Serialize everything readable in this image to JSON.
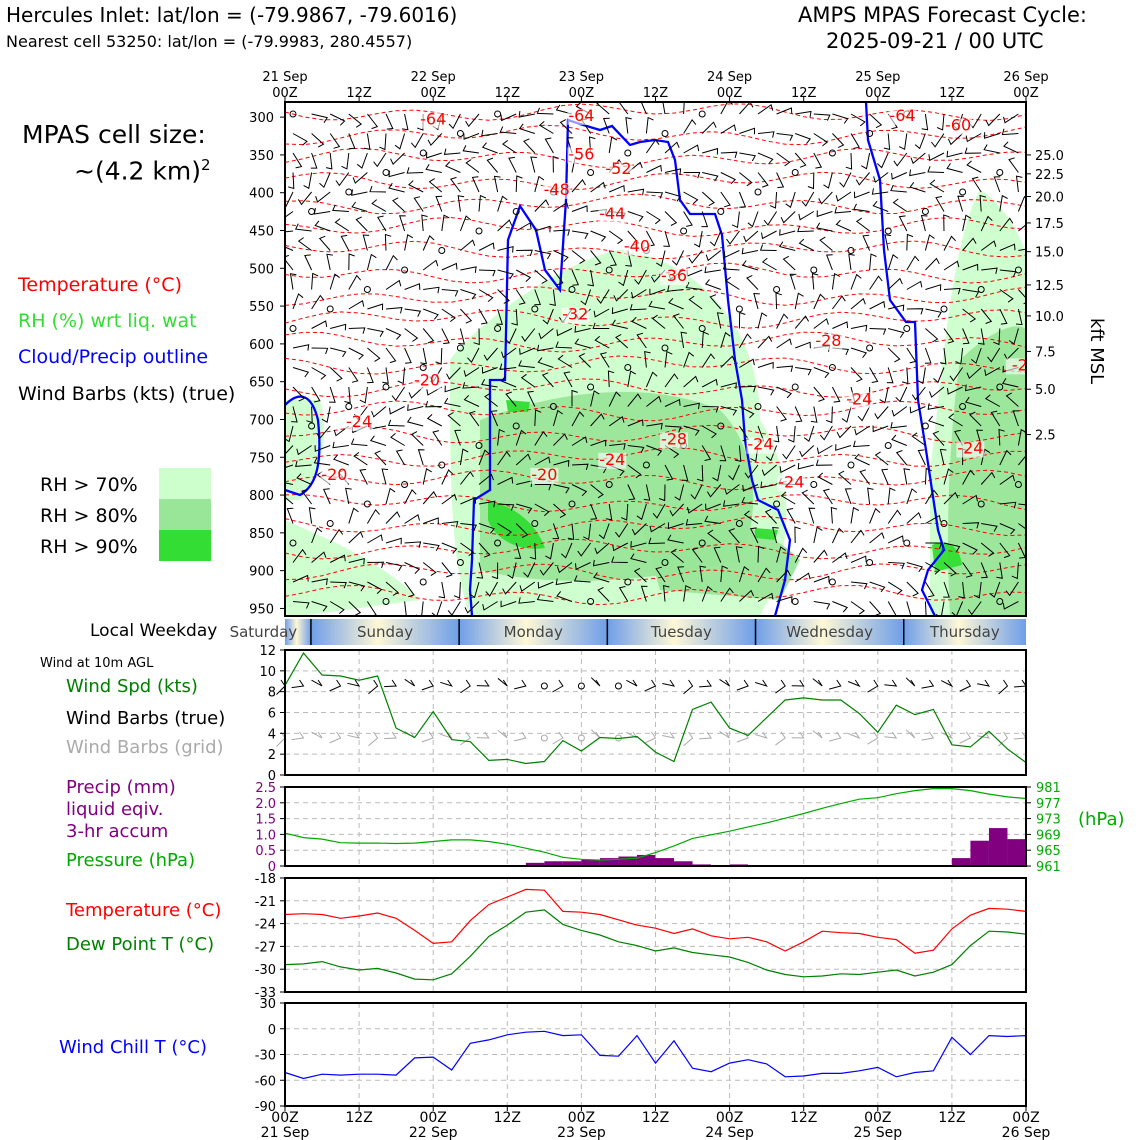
{
  "header": {
    "location_line": "Hercules Inlet: lat/lon = (-79.9867, -79.6016)",
    "cell_line": "Nearest cell 53250: lat/lon = (-79.9983, 280.4557)",
    "cycle_title": "AMPS MPAS Forecast Cycle:",
    "cycle_date": "2025-09-21 / 00 UTC"
  },
  "legend": {
    "cell_size_label": "MPAS cell size:",
    "cell_size_value": "~(4.2 km)",
    "cell_size_exp": "2",
    "temperature": "Temperature (°C)",
    "rh": "RH (%) wrt liq. wat",
    "cloud": "Cloud/Precip outline",
    "wind_barbs": "Wind Barbs (kts) (true)",
    "rh70": "RH > 70%",
    "rh80": "RH > 80%",
    "rh90": "RH > 90%"
  },
  "colors": {
    "temperature": "#ff0000",
    "rh_text": "#33dd33",
    "cloud": "#0000ff",
    "rh70": "#ccffcc",
    "rh80": "#99e699",
    "rh90": "#33dd33",
    "wind_speed": "#008000",
    "precip": "#800080",
    "pressure": "#00aa00",
    "dewpoint": "#008000",
    "windchill": "#0000ff",
    "grid_barb": "#aaaaaa"
  },
  "weekday": {
    "label": "Local Weekday",
    "days": [
      "Saturday",
      "Sunday",
      "Monday",
      "Tuesday",
      "Wednesday",
      "Thursday"
    ]
  },
  "time_axis": {
    "top_date_labels": [
      "21 Sep",
      "22 Sep",
      "23 Sep",
      "24 Sep",
      "25 Sep",
      "26 Sep"
    ],
    "tick_labels": [
      "00Z",
      "12Z",
      "00Z",
      "12Z",
      "00Z",
      "12Z",
      "00Z",
      "12Z",
      "00Z",
      "12Z",
      "00Z"
    ],
    "bottom_date_labels": [
      "21 Sep",
      "22 Sep",
      "23 Sep",
      "24 Sep",
      "25 Sep",
      "26 Sep"
    ]
  },
  "chart_data": [
    {
      "id": "upper-air",
      "type": "heatmap",
      "pressure_ticks": [
        300,
        350,
        400,
        450,
        500,
        550,
        600,
        650,
        700,
        750,
        800,
        850,
        900,
        950
      ],
      "right_axis_label": "kft MSL",
      "kft_ticks": [
        "25.0",
        "22.5",
        "20.0",
        "17.5",
        "15.0",
        "12.5",
        "10.0",
        "7.5",
        "5.0",
        "2.5"
      ],
      "kft_tick_pressures": [
        350,
        375,
        405,
        440,
        478,
        522,
        563,
        610,
        660,
        720
      ],
      "temperature_labels": [
        {
          "text": "-64",
          "hour": 24,
          "p": 310
        },
        {
          "text": "-64",
          "hour": 48,
          "p": 305
        },
        {
          "text": "-64",
          "hour": 100,
          "p": 305
        },
        {
          "text": "-60",
          "hour": 109,
          "p": 318
        },
        {
          "text": "-56",
          "hour": 48,
          "p": 356
        },
        {
          "text": "-52",
          "hour": 54,
          "p": 375
        },
        {
          "text": "-48",
          "hour": 44,
          "p": 403
        },
        {
          "text": "-44",
          "hour": 53,
          "p": 435
        },
        {
          "text": "-40",
          "hour": 57,
          "p": 478
        },
        {
          "text": "-36",
          "hour": 63,
          "p": 517
        },
        {
          "text": "-32",
          "hour": 47,
          "p": 568
        },
        {
          "text": "-28",
          "hour": 88,
          "p": 603
        },
        {
          "text": "-24",
          "hour": 93,
          "p": 680
        },
        {
          "text": "-24",
          "hour": 12,
          "p": 710
        },
        {
          "text": "-20",
          "hour": 23,
          "p": 655
        },
        {
          "text": "-28",
          "hour": 63,
          "p": 733
        },
        {
          "text": "-24",
          "hour": 77,
          "p": 740
        },
        {
          "text": "-24",
          "hour": 53,
          "p": 760
        },
        {
          "text": "-20",
          "hour": 42,
          "p": 780
        },
        {
          "text": "-20",
          "hour": 8,
          "p": 780
        },
        {
          "text": "-24",
          "hour": 82,
          "p": 790
        },
        {
          "text": "-24",
          "hour": 111,
          "p": 745
        },
        {
          "text": "-2",
          "hour": 119,
          "p": 635
        }
      ],
      "x_range_hours": [
        0,
        120
      ],
      "y_range_hpa": [
        280,
        960
      ]
    },
    {
      "id": "wind-10m",
      "type": "line",
      "title_note": "Wind at 10m AGL",
      "ylabel": "Wind Spd (kts)",
      "ylim": [
        0,
        12
      ],
      "yticks": [
        0,
        2,
        4,
        6,
        8,
        10,
        12
      ],
      "x_hours": [
        0,
        3,
        6,
        9,
        12,
        15,
        18,
        21,
        24,
        27,
        30,
        33,
        36,
        39,
        42,
        45,
        48,
        51,
        54,
        57,
        60,
        63,
        66,
        69,
        72,
        75,
        78,
        81,
        84,
        87,
        90,
        93,
        96,
        99,
        102,
        105,
        108,
        111,
        114,
        117,
        120
      ],
      "series": [
        {
          "name": "Wind Spd (kts)",
          "values": [
            8.6,
            11.7,
            9.6,
            9.5,
            9.1,
            9.5,
            4.5,
            3.6,
            6.1,
            3.4,
            3.2,
            1.4,
            1.5,
            1.1,
            1.3,
            3.3,
            2.3,
            3.6,
            3.5,
            3.7,
            2.2,
            1.3,
            6.3,
            7.0,
            4.5,
            3.8,
            5.5,
            7.2,
            7.4,
            7.2,
            7.2,
            5.9,
            4.1,
            6.7,
            5.8,
            6.3,
            2.9,
            2.7,
            4.2,
            2.5,
            1.2
          ]
        }
      ],
      "legend": [
        "Wind Spd (kts)",
        "Wind Barbs (true)",
        "Wind Barbs (grid)"
      ]
    },
    {
      "id": "precip-pressure",
      "type": "bar",
      "ylabel_left": [
        "Precip (mm)",
        "liquid eqiv.",
        "3-hr accum"
      ],
      "ylabel_right_series": "Pressure (hPa)",
      "right_unit": "(hPa)",
      "ylim": [
        0,
        2.5
      ],
      "yticks": [
        0,
        0.5,
        1.0,
        1.5,
        2.0,
        2.5
      ],
      "ylim_right": [
        961,
        981
      ],
      "yticks_right": [
        961,
        965,
        969,
        973,
        977,
        981
      ],
      "precip_bars": [
        {
          "start_hour": 39,
          "value": 0.1
        },
        {
          "start_hour": 42,
          "value": 0.15
        },
        {
          "start_hour": 45,
          "value": 0.15
        },
        {
          "start_hour": 48,
          "value": 0.2
        },
        {
          "start_hour": 51,
          "value": 0.25
        },
        {
          "start_hour": 54,
          "value": 0.3
        },
        {
          "start_hour": 57,
          "value": 0.35
        },
        {
          "start_hour": 60,
          "value": 0.25
        },
        {
          "start_hour": 63,
          "value": 0.15
        },
        {
          "start_hour": 66,
          "value": 0.05
        },
        {
          "start_hour": 72,
          "value": 0.05
        },
        {
          "start_hour": 108,
          "value": 0.25
        },
        {
          "start_hour": 111,
          "value": 0.8
        },
        {
          "start_hour": 114,
          "value": 1.2
        },
        {
          "start_hour": 117,
          "value": 0.85
        }
      ],
      "pressure_x_hours": [
        0,
        3,
        6,
        9,
        12,
        15,
        18,
        21,
        24,
        27,
        30,
        33,
        36,
        39,
        42,
        45,
        48,
        51,
        54,
        57,
        60,
        63,
        66,
        69,
        72,
        75,
        78,
        81,
        84,
        87,
        90,
        93,
        96,
        99,
        102,
        105,
        108,
        111,
        114,
        117,
        120
      ],
      "pressure_values": [
        969.3,
        968.2,
        967.8,
        966.9,
        966.8,
        966.8,
        966.7,
        966.8,
        967.2,
        967.6,
        967.6,
        967.2,
        966.5,
        965.5,
        964.5,
        963.2,
        962.7,
        962.5,
        962.7,
        963.0,
        964.4,
        966.1,
        968.0,
        968.9,
        969.8,
        970.9,
        971.9,
        973.1,
        974.3,
        975.6,
        976.8,
        977.9,
        978.3,
        979.3,
        980.1,
        980.6,
        980.6,
        980.1,
        979.2,
        978.5,
        978.1
      ]
    },
    {
      "id": "temp-dewpoint",
      "type": "line",
      "ylim": [
        -33,
        -18
      ],
      "yticks": [
        -18,
        -21,
        -24,
        -27,
        -30,
        -33
      ],
      "x_hours": [
        0,
        3,
        6,
        9,
        12,
        15,
        18,
        21,
        24,
        27,
        30,
        33,
        36,
        39,
        42,
        45,
        48,
        51,
        54,
        57,
        60,
        63,
        66,
        69,
        72,
        75,
        78,
        81,
        84,
        87,
        90,
        93,
        96,
        99,
        102,
        105,
        108,
        111,
        114,
        117,
        120
      ],
      "series": [
        {
          "name": "Temperature (°C)",
          "values": [
            -22.8,
            -22.7,
            -22.8,
            -23.3,
            -23.0,
            -22.6,
            -23.3,
            -24.9,
            -26.6,
            -26.4,
            -23.6,
            -21.5,
            -20.5,
            -19.5,
            -19.6,
            -22.4,
            -22.5,
            -22.8,
            -23.5,
            -24.2,
            -24.6,
            -25.3,
            -24.7,
            -25.6,
            -26.0,
            -25.8,
            -26.4,
            -27.6,
            -26.4,
            -25.0,
            -25.2,
            -25.3,
            -25.8,
            -26.1,
            -27.9,
            -27.5,
            -24.7,
            -22.9,
            -22.0,
            -22.1,
            -22.4
          ]
        },
        {
          "name": "Dew Point T (°C)",
          "values": [
            -29.4,
            -29.3,
            -29.0,
            -29.7,
            -30.1,
            -29.9,
            -30.5,
            -31.3,
            -31.4,
            -30.6,
            -28.3,
            -25.7,
            -24.2,
            -22.5,
            -22.2,
            -24.1,
            -24.9,
            -25.5,
            -26.4,
            -26.9,
            -27.6,
            -27.2,
            -27.8,
            -28.1,
            -28.4,
            -29.1,
            -30.1,
            -30.7,
            -31.0,
            -30.9,
            -30.6,
            -30.7,
            -30.4,
            -30.1,
            -30.9,
            -30.4,
            -29.4,
            -26.9,
            -25.0,
            -25.1,
            -25.4
          ]
        }
      ]
    },
    {
      "id": "wind-chill",
      "type": "line",
      "ylim": [
        -90,
        30
      ],
      "yticks": [
        30,
        0,
        -30,
        -60,
        -90
      ],
      "x_hours": [
        0,
        3,
        6,
        9,
        12,
        15,
        18,
        21,
        24,
        27,
        30,
        33,
        36,
        39,
        42,
        45,
        48,
        51,
        54,
        57,
        60,
        63,
        66,
        69,
        72,
        75,
        78,
        81,
        84,
        87,
        90,
        93,
        96,
        99,
        102,
        105,
        108,
        111,
        114,
        117,
        120
      ],
      "series": [
        {
          "name": "Wind Chill T (°C)",
          "values": [
            -51,
            -58,
            -53,
            -54,
            -53,
            -53,
            -54,
            -34,
            -33,
            -48,
            -17,
            -13,
            -7,
            -4,
            -3,
            -8,
            -7,
            -31,
            -32,
            -8,
            -40,
            -14,
            -46,
            -50,
            -40,
            -36,
            -41,
            -56,
            -55,
            -52,
            -52,
            -49,
            -45,
            -56,
            -51,
            -49,
            -10,
            -30,
            -8,
            -9,
            -8
          ]
        }
      ]
    }
  ]
}
